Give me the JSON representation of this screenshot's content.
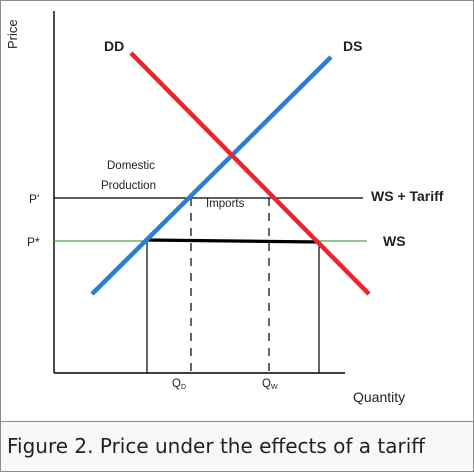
{
  "diagram": {
    "axis_y_label": "Price",
    "axis_x_label": "Quantity",
    "demand_label": "DD",
    "supply_label": "DS",
    "price_world_tariff_label": "P'",
    "price_world_label": "P*",
    "world_supply_tariff_label": "WS + Tariff",
    "world_supply_label": "WS",
    "domestic_production_label_line1": "Domestic",
    "domestic_production_label_line2": "Production",
    "imports_label": "Imports",
    "qd_label": "Q",
    "qd_sub": "D",
    "qw_label": "Q",
    "qw_sub": "W",
    "colors": {
      "demand": "#e8262b",
      "supply": "#2a7fd4",
      "world_supply": "#4aa847",
      "tariff_line": "#000000",
      "axes": "#000000"
    }
  },
  "caption": {
    "text": "Figure 2. Price under the effects of a tariff"
  }
}
